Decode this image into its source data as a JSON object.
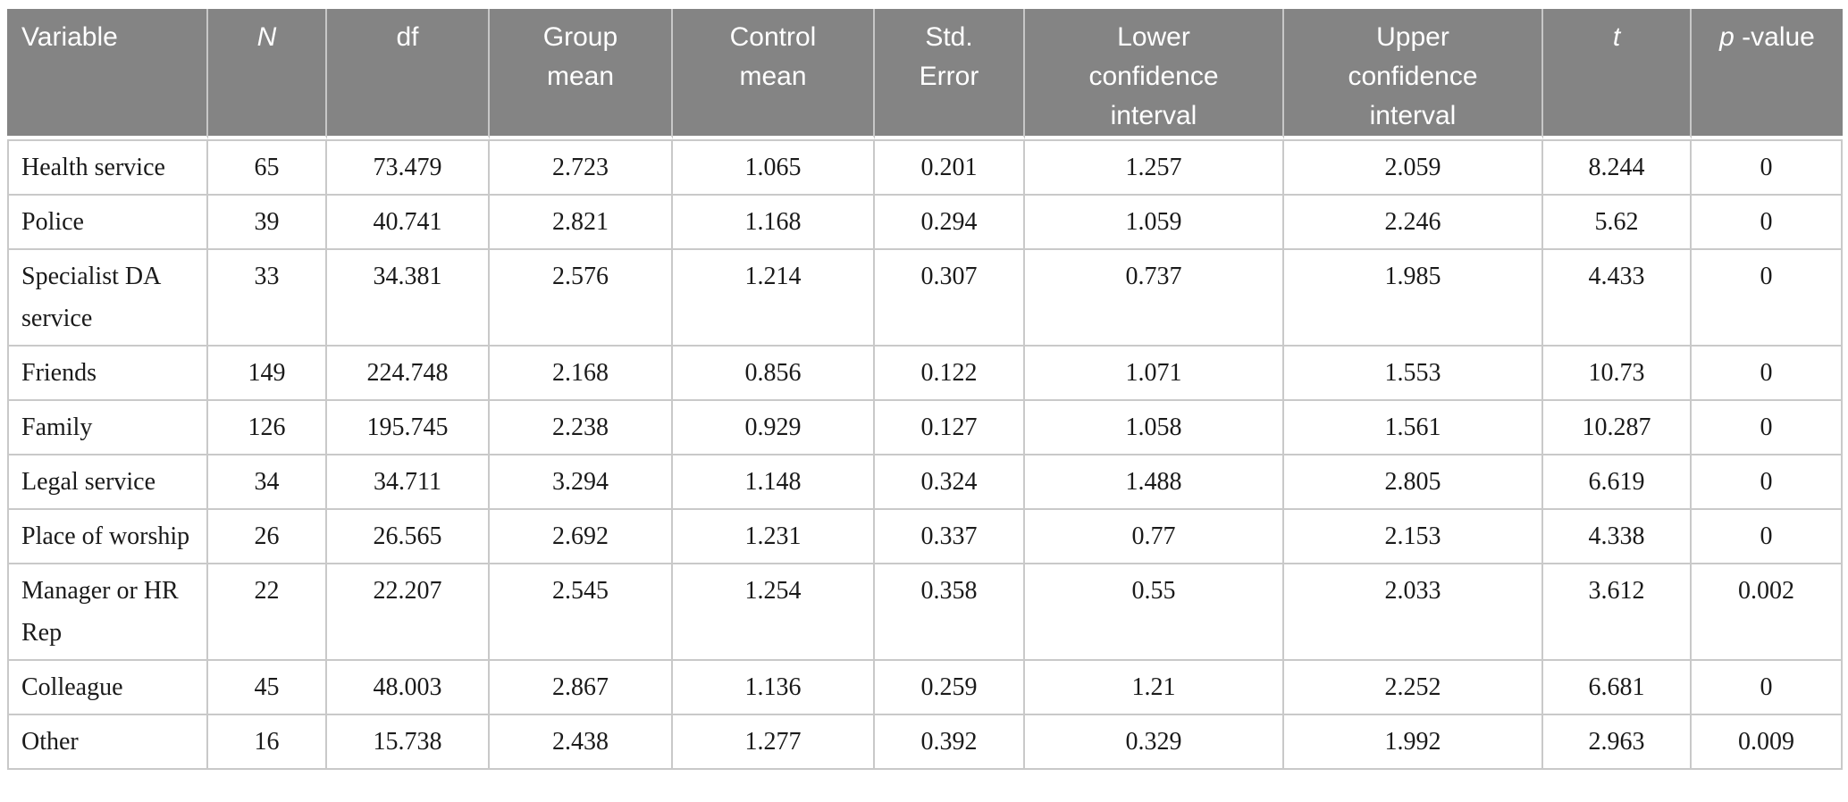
{
  "table": {
    "columns": [
      {
        "key": "variable",
        "parts": [
          {
            "t": "Variable"
          }
        ]
      },
      {
        "key": "n",
        "parts": [
          {
            "t": "N",
            "i": true
          }
        ]
      },
      {
        "key": "df",
        "parts": [
          {
            "t": "df"
          }
        ]
      },
      {
        "key": "group-mean",
        "parts": [
          {
            "t": "Group"
          },
          {
            "t": "mean",
            "br": true
          }
        ]
      },
      {
        "key": "control-mean",
        "parts": [
          {
            "t": "Control"
          },
          {
            "t": "mean",
            "br": true
          }
        ]
      },
      {
        "key": "std-error",
        "parts": [
          {
            "t": "Std."
          },
          {
            "t": "Error",
            "br": true
          }
        ]
      },
      {
        "key": "lower-ci",
        "parts": [
          {
            "t": "Lower"
          },
          {
            "t": "confidence",
            "br": true
          },
          {
            "t": "interval",
            "br": true
          }
        ]
      },
      {
        "key": "upper-ci",
        "parts": [
          {
            "t": "Upper"
          },
          {
            "t": "confidence",
            "br": true
          },
          {
            "t": "interval",
            "br": true
          }
        ]
      },
      {
        "key": "t",
        "parts": [
          {
            "t": "t",
            "i": true
          }
        ]
      },
      {
        "key": "p-value",
        "parts": [
          {
            "t": "p",
            "i": true
          },
          {
            "t": "-value"
          }
        ]
      }
    ],
    "rows": [
      {
        "cells": [
          "Health service",
          "65",
          "73.479",
          "2.723",
          "1.065",
          "0.201",
          "1.257",
          "2.059",
          "8.244",
          "0"
        ]
      },
      {
        "cells": [
          "Police",
          "39",
          "40.741",
          "2.821",
          "1.168",
          "0.294",
          "1.059",
          "2.246",
          "5.62",
          "0"
        ]
      },
      {
        "cells": [
          "Specialist DA service",
          "33",
          "34.381",
          "2.576",
          "1.214",
          "0.307",
          "0.737",
          "1.985",
          "4.433",
          "0"
        ]
      },
      {
        "cells": [
          "Friends",
          "149",
          "224.748",
          "2.168",
          "0.856",
          "0.122",
          "1.071",
          "1.553",
          "10.73",
          "0"
        ]
      },
      {
        "cells": [
          "Family",
          "126",
          "195.745",
          "2.238",
          "0.929",
          "0.127",
          "1.058",
          "1.561",
          "10.287",
          "0"
        ]
      },
      {
        "cells": [
          "Legal service",
          "34",
          "34.711",
          "3.294",
          "1.148",
          "0.324",
          "1.488",
          "2.805",
          "6.619",
          "0"
        ]
      },
      {
        "cells": [
          "Place of worship",
          "26",
          "26.565",
          "2.692",
          "1.231",
          "0.337",
          "0.77",
          "2.153",
          "4.338",
          "0"
        ]
      },
      {
        "cells": [
          "Manager or HR Rep",
          "22",
          "22.207",
          "2.545",
          "1.254",
          "0.358",
          "0.55",
          "2.033",
          "3.612",
          "0.002"
        ]
      },
      {
        "cells": [
          "Colleague",
          "45",
          "48.003",
          "2.867",
          "1.136",
          "0.259",
          "1.21",
          "2.252",
          "6.681",
          "0"
        ]
      },
      {
        "cells": [
          "Other",
          "16",
          "15.738",
          "2.438",
          "1.277",
          "0.392",
          "0.329",
          "1.992",
          "2.963",
          "0.009"
        ]
      }
    ]
  },
  "colors": {
    "header_bg": "#848484",
    "header_text": "#ffffff",
    "body_text": "#1a1a1a",
    "border": "#c9c9c9"
  }
}
